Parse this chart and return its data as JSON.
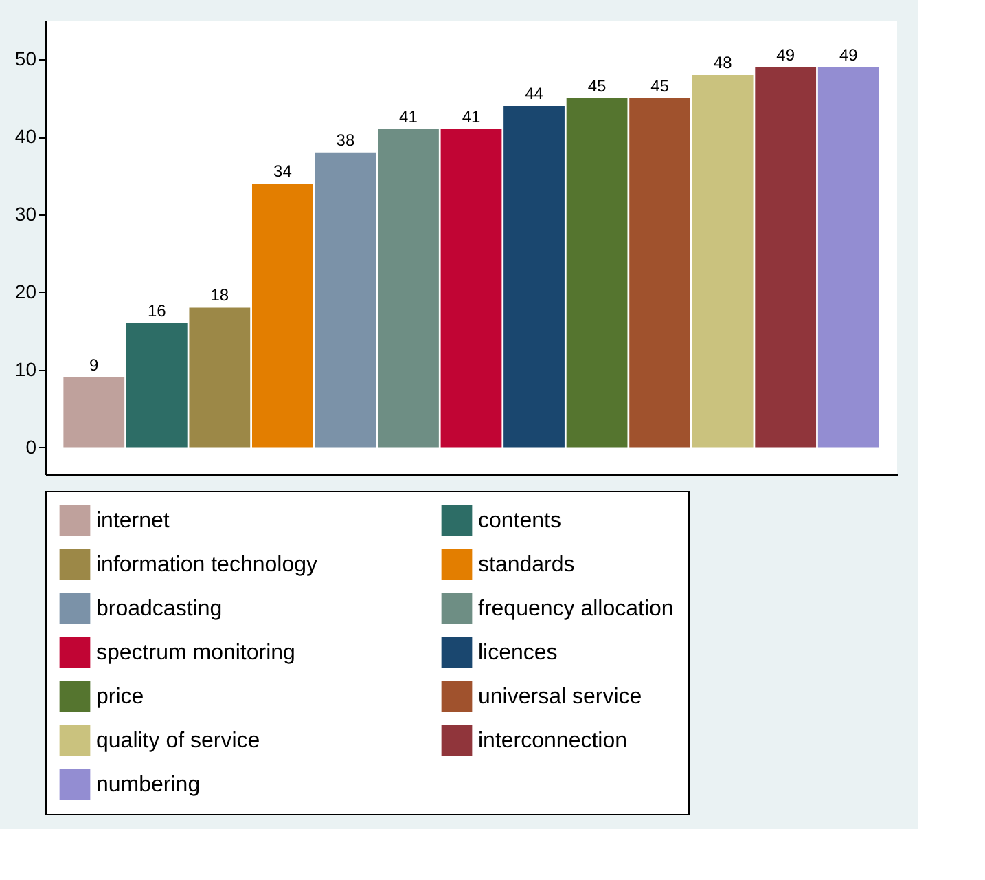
{
  "chart_data": {
    "type": "bar",
    "categories": [
      null
    ],
    "series": [
      {
        "name": "internet",
        "color": "#bfa19c",
        "values": [
          9
        ]
      },
      {
        "name": "contents",
        "color": "#2d6d66",
        "values": [
          16
        ]
      },
      {
        "name": "information technology",
        "color": "#9c8847",
        "values": [
          18
        ]
      },
      {
        "name": "standards",
        "color": "#e37e00",
        "values": [
          34
        ]
      },
      {
        "name": "broadcasting",
        "color": "#7b92a8",
        "values": [
          38
        ]
      },
      {
        "name": "frequency allocation",
        "color": "#6e8e84",
        "values": [
          41
        ]
      },
      {
        "name": "spectrum monitoring",
        "color": "#c10534",
        "values": [
          41
        ]
      },
      {
        "name": "licences",
        "color": "#1a476f",
        "values": [
          44
        ]
      },
      {
        "name": "price",
        "color": "#55752f",
        "values": [
          45
        ]
      },
      {
        "name": "universal service",
        "color": "#a0522d",
        "values": [
          45
        ]
      },
      {
        "name": "quality of service",
        "color": "#cac27e",
        "values": [
          48
        ]
      },
      {
        "name": "interconnection",
        "color": "#90353b",
        "values": [
          49
        ]
      },
      {
        "name": "numbering",
        "color": "#938dd2",
        "values": [
          49
        ]
      }
    ],
    "ylim": [
      -3.5,
      55
    ],
    "yticks": [
      0,
      10,
      20,
      30,
      40,
      50
    ],
    "tick_labels": "y",
    "grid": false,
    "legend": "bottom",
    "data_labels": true
  }
}
